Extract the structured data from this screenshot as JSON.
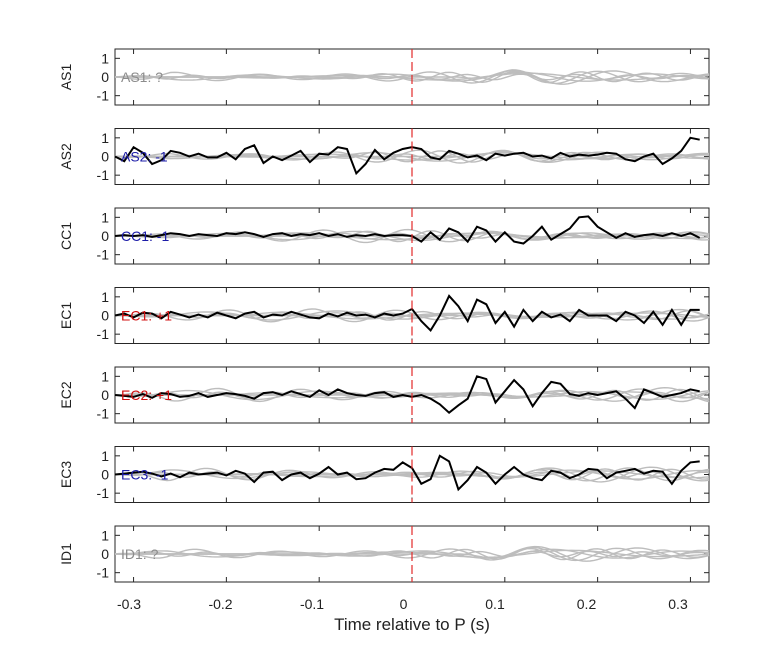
{
  "chart_data": {
    "type": "line",
    "xlabel": "Time relative to P (s)",
    "xlim": [
      -0.32,
      0.32
    ],
    "x_ticks": [
      "-0.3",
      "-0.2",
      "-0.1",
      "0",
      "0.1",
      "0.2",
      "0.3"
    ],
    "x_tick_values": [
      -0.3,
      -0.2,
      -0.1,
      0,
      0.1,
      0.2,
      0.3
    ],
    "ylim": [
      -1.5,
      1.5
    ],
    "y_ticks": [
      "1",
      "0",
      "-1"
    ],
    "y_tick_values": [
      1,
      0,
      -1
    ],
    "p_marker_x": 0,
    "colors": {
      "black_trace": "#000000",
      "gray_trace": "#bdbdbd",
      "marker": "#e32a2a",
      "label_positive": "#d01010",
      "label_negative": "#1c1ca8",
      "label_unknown": "#8c8c8c"
    },
    "panels": [
      {
        "channel": "AS1",
        "label": "AS1: ?",
        "label_color": "#8c8c8c",
        "has_black_trace": false
      },
      {
        "channel": "AS2",
        "label": "AS2: -1",
        "label_color": "#1c1ca8",
        "has_black_trace": true,
        "black_x": [
          -0.32,
          -0.31,
          -0.3,
          -0.29,
          -0.28,
          -0.27,
          -0.26,
          -0.25,
          -0.24,
          -0.23,
          -0.22,
          -0.21,
          -0.2,
          -0.19,
          -0.18,
          -0.17,
          -0.16,
          -0.15,
          -0.14,
          -0.13,
          -0.12,
          -0.11,
          -0.1,
          -0.09,
          -0.08,
          -0.07,
          -0.06,
          -0.05,
          -0.04,
          -0.03,
          -0.02,
          -0.01,
          0.0,
          0.01,
          0.02,
          0.03,
          0.04,
          0.05,
          0.06,
          0.07,
          0.08,
          0.09,
          0.1,
          0.11,
          0.12,
          0.13,
          0.14,
          0.15,
          0.16,
          0.17,
          0.18,
          0.19,
          0.2,
          0.21,
          0.22,
          0.23,
          0.24,
          0.25,
          0.26,
          0.27,
          0.28,
          0.29,
          0.3,
          0.31
        ],
        "black_y": [
          0.0,
          -0.25,
          0.5,
          0.2,
          -0.4,
          -0.2,
          0.3,
          0.2,
          0.0,
          0.15,
          -0.05,
          -0.05,
          0.2,
          -0.15,
          0.4,
          0.6,
          -0.35,
          0.0,
          -0.2,
          0.05,
          0.3,
          -0.3,
          0.15,
          0.1,
          0.5,
          0.4,
          -0.9,
          -0.4,
          0.35,
          -0.15,
          0.2,
          0.4,
          0.5,
          0.4,
          -0.05,
          -0.15,
          0.3,
          0.15,
          -0.05,
          0.05,
          -0.2,
          0.15,
          0.05,
          0.15,
          0.2,
          0.0,
          0.05,
          -0.1,
          0.2,
          0.0,
          0.1,
          0.05,
          0.1,
          0.2,
          0.15,
          -0.15,
          -0.25,
          0.0,
          0.15,
          -0.4,
          -0.1,
          0.3,
          1.0,
          0.9
        ]
      },
      {
        "channel": "CC1",
        "label": "CC1: -1",
        "label_color": "#1c1ca8",
        "has_black_trace": true,
        "black_x": [
          -0.32,
          -0.31,
          -0.3,
          -0.29,
          -0.28,
          -0.27,
          -0.26,
          -0.25,
          -0.24,
          -0.23,
          -0.22,
          -0.21,
          -0.2,
          -0.19,
          -0.18,
          -0.17,
          -0.16,
          -0.15,
          -0.14,
          -0.13,
          -0.12,
          -0.11,
          -0.1,
          -0.09,
          -0.08,
          -0.07,
          -0.06,
          -0.05,
          -0.04,
          -0.03,
          -0.02,
          -0.01,
          0.0,
          0.01,
          0.02,
          0.03,
          0.04,
          0.05,
          0.06,
          0.07,
          0.08,
          0.09,
          0.1,
          0.11,
          0.12,
          0.13,
          0.14,
          0.15,
          0.16,
          0.17,
          0.18,
          0.19,
          0.2,
          0.21,
          0.22,
          0.23,
          0.24,
          0.25,
          0.26,
          0.27,
          0.28,
          0.29,
          0.3,
          0.31
        ],
        "black_y": [
          0.0,
          0.05,
          0.0,
          0.05,
          -0.05,
          0.05,
          0.15,
          0.1,
          0.0,
          0.1,
          0.05,
          0.0,
          0.15,
          0.1,
          0.2,
          0.1,
          -0.05,
          0.1,
          0.15,
          0.0,
          0.1,
          0.05,
          0.15,
          0.0,
          0.1,
          -0.05,
          0.05,
          0.0,
          0.1,
          0.0,
          0.05,
          0.05,
          0.0,
          -0.3,
          0.2,
          -0.2,
          0.4,
          0.2,
          -0.3,
          0.5,
          0.3,
          -0.3,
          0.2,
          -0.3,
          -0.4,
          0.0,
          0.5,
          -0.2,
          0.1,
          0.4,
          1.0,
          1.05,
          0.5,
          0.2,
          -0.1,
          0.15,
          -0.05,
          0.05,
          0.1,
          0.0,
          0.15,
          0.0,
          0.15,
          -0.1
        ]
      },
      {
        "channel": "EC1",
        "label": "EC1: +1",
        "label_color": "#d01010",
        "has_black_trace": true,
        "black_x": [
          -0.32,
          -0.31,
          -0.3,
          -0.29,
          -0.28,
          -0.27,
          -0.26,
          -0.25,
          -0.24,
          -0.23,
          -0.22,
          -0.21,
          -0.2,
          -0.19,
          -0.18,
          -0.17,
          -0.16,
          -0.15,
          -0.14,
          -0.13,
          -0.12,
          -0.11,
          -0.1,
          -0.09,
          -0.08,
          -0.07,
          -0.06,
          -0.05,
          -0.04,
          -0.03,
          -0.02,
          -0.01,
          0.0,
          0.01,
          0.02,
          0.03,
          0.04,
          0.05,
          0.06,
          0.07,
          0.08,
          0.09,
          0.1,
          0.11,
          0.12,
          0.13,
          0.14,
          0.15,
          0.16,
          0.17,
          0.18,
          0.19,
          0.2,
          0.21,
          0.22,
          0.23,
          0.24,
          0.25,
          0.26,
          0.27,
          0.28,
          0.29,
          0.3,
          0.31
        ],
        "black_y": [
          0.0,
          0.1,
          -0.1,
          0.15,
          0.1,
          -0.15,
          0.2,
          0.05,
          -0.1,
          0.05,
          -0.1,
          0.15,
          0.0,
          -0.15,
          0.1,
          0.2,
          -0.1,
          0.05,
          0.0,
          0.2,
          0.05,
          -0.1,
          -0.15,
          0.1,
          -0.05,
          0.15,
          0.0,
          0.05,
          -0.1,
          0.1,
          0.0,
          0.1,
          0.35,
          -0.3,
          -0.8,
          0.0,
          1.05,
          0.5,
          -0.3,
          0.85,
          0.6,
          -0.4,
          0.2,
          -0.6,
          0.3,
          -0.3,
          0.2,
          -0.1,
          0.05,
          -0.3,
          0.3,
          0.0,
          0.0,
          0.0,
          -0.3,
          0.2,
          0.0,
          -0.4,
          0.2,
          -0.5,
          0.3,
          -0.5,
          0.3,
          0.3
        ]
      },
      {
        "channel": "EC2",
        "label": "EC2: +1",
        "label_color": "#d01010",
        "has_black_trace": true,
        "black_x": [
          -0.32,
          -0.31,
          -0.3,
          -0.29,
          -0.28,
          -0.27,
          -0.26,
          -0.25,
          -0.24,
          -0.23,
          -0.22,
          -0.21,
          -0.2,
          -0.19,
          -0.18,
          -0.17,
          -0.16,
          -0.15,
          -0.14,
          -0.13,
          -0.12,
          -0.11,
          -0.1,
          -0.09,
          -0.08,
          -0.07,
          -0.06,
          -0.05,
          -0.04,
          -0.03,
          -0.02,
          -0.01,
          0.0,
          0.01,
          0.02,
          0.03,
          0.04,
          0.05,
          0.06,
          0.07,
          0.08,
          0.09,
          0.1,
          0.11,
          0.12,
          0.13,
          0.14,
          0.15,
          0.16,
          0.17,
          0.18,
          0.19,
          0.2,
          0.21,
          0.22,
          0.23,
          0.24,
          0.25,
          0.26,
          0.27,
          0.28,
          0.29,
          0.3,
          0.31
        ],
        "black_y": [
          0.0,
          -0.05,
          -0.1,
          0.05,
          -0.15,
          0.1,
          0.05,
          -0.1,
          -0.05,
          0.1,
          -0.1,
          0.0,
          0.1,
          0.05,
          -0.05,
          -0.2,
          0.1,
          0.15,
          0.0,
          0.2,
          0.05,
          -0.1,
          0.25,
          0.0,
          0.3,
          0.1,
          0.0,
          -0.05,
          0.1,
          0.15,
          -0.1,
          0.0,
          -0.1,
          0.0,
          -0.2,
          -0.5,
          -0.95,
          -0.55,
          -0.2,
          1.0,
          0.85,
          -0.4,
          0.2,
          0.8,
          0.3,
          -0.6,
          0.1,
          0.7,
          0.6,
          0.05,
          -0.05,
          0.1,
          0.0,
          0.1,
          0.2,
          -0.2,
          -0.7,
          0.3,
          0.1,
          -0.1,
          0.0,
          0.1,
          0.3,
          0.2
        ]
      },
      {
        "channel": "EC3",
        "label": "EC3: -1",
        "label_color": "#1c1ca8",
        "has_black_trace": true,
        "black_x": [
          -0.32,
          -0.31,
          -0.3,
          -0.29,
          -0.28,
          -0.27,
          -0.26,
          -0.25,
          -0.24,
          -0.23,
          -0.22,
          -0.21,
          -0.2,
          -0.19,
          -0.18,
          -0.17,
          -0.16,
          -0.15,
          -0.14,
          -0.13,
          -0.12,
          -0.11,
          -0.1,
          -0.09,
          -0.08,
          -0.07,
          -0.06,
          -0.05,
          -0.04,
          -0.03,
          -0.02,
          -0.01,
          0.0,
          0.01,
          0.02,
          0.03,
          0.04,
          0.05,
          0.06,
          0.07,
          0.08,
          0.09,
          0.1,
          0.11,
          0.12,
          0.13,
          0.14,
          0.15,
          0.16,
          0.17,
          0.18,
          0.19,
          0.2,
          0.21,
          0.22,
          0.23,
          0.24,
          0.25,
          0.26,
          0.27,
          0.28,
          0.29,
          0.3,
          0.31
        ],
        "black_y": [
          0.0,
          0.05,
          0.1,
          0.15,
          0.05,
          -0.1,
          0.05,
          -0.15,
          0.1,
          0.0,
          0.05,
          0.1,
          -0.05,
          0.2,
          0.05,
          -0.4,
          0.1,
          0.15,
          -0.3,
          0.0,
          0.1,
          -0.2,
          0.05,
          0.4,
          0.0,
          0.1,
          -0.25,
          -0.2,
          0.1,
          0.3,
          0.25,
          0.65,
          0.35,
          -0.5,
          -0.25,
          1.0,
          0.7,
          -0.8,
          -0.3,
          0.4,
          0.1,
          -0.5,
          0.0,
          0.4,
          0.0,
          -0.2,
          -0.3,
          0.2,
          0.1,
          -0.2,
          0.0,
          0.3,
          0.25,
          -0.2,
          0.1,
          0.2,
          0.3,
          0.05,
          0.2,
          0.15,
          -0.5,
          0.2,
          0.65,
          0.7
        ]
      },
      {
        "channel": "ID1",
        "label": "ID1: ?",
        "label_color": "#8c8c8c",
        "has_black_trace": false
      }
    ]
  }
}
